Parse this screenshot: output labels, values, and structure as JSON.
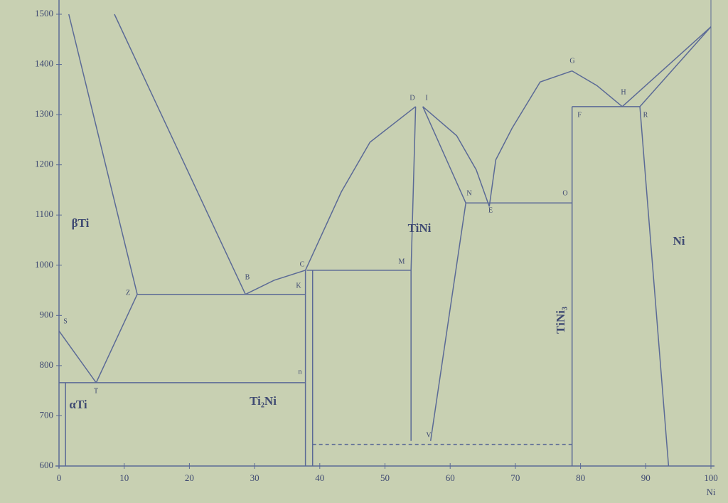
{
  "chart_data": {
    "type": "line",
    "color": "#5b6a96",
    "xlabel": "Ni",
    "xlim": [
      0,
      100
    ],
    "xticks": [
      0,
      10,
      20,
      30,
      40,
      50,
      60,
      70,
      80,
      90,
      100
    ],
    "ylim": [
      600,
      1500
    ],
    "yticks": [
      600,
      700,
      800,
      900,
      1000,
      1100,
      1200,
      1300,
      1400,
      1500
    ],
    "series": [
      {
        "x": [
          1.5,
          12
        ],
        "values": [
          1500,
          942
        ]
      },
      {
        "x": [
          8.5,
          28.6
        ],
        "values": [
          1500,
          942
        ]
      },
      {
        "x": [
          12,
          37.8
        ],
        "values": [
          942,
          942
        ]
      },
      {
        "x": [
          28.6,
          33,
          37.8
        ],
        "values": [
          942,
          970,
          990
        ]
      },
      {
        "x": [
          37.8,
          43.3,
          47.7,
          54.7
        ],
        "values": [
          990,
          1146,
          1245,
          1316
        ]
      },
      {
        "x": [
          55.8,
          61,
          64,
          66
        ],
        "values": [
          1316,
          1258,
          1190,
          1117
        ]
      },
      {
        "x": [
          55.8,
          62.4
        ],
        "values": [
          1316,
          1124
        ]
      },
      {
        "x": [
          66,
          67,
          69.5,
          73.8,
          78.7
        ],
        "values": [
          1117,
          1210,
          1273,
          1365,
          1387
        ]
      },
      {
        "x": [
          78.7,
          82.5,
          86.4
        ],
        "values": [
          1387,
          1358,
          1316
        ]
      },
      {
        "x": [
          86.4,
          100
        ],
        "values": [
          1316,
          1475
        ]
      },
      {
        "x": [
          89.1,
          100
        ],
        "values": [
          1316,
          1475
        ]
      },
      {
        "x": [
          78.7,
          89.1
        ],
        "values": [
          1316,
          1316
        ]
      },
      {
        "x": [
          62.4,
          78.7
        ],
        "values": [
          1124,
          1124
        ]
      },
      {
        "x": [
          38,
          54
        ],
        "values": [
          990,
          990
        ]
      },
      {
        "x": [
          54.7,
          54,
          54
        ],
        "values": [
          1316,
          990,
          650
        ]
      },
      {
        "x": [
          62.4,
          57
        ],
        "values": [
          1124,
          650
        ]
      },
      {
        "x": [
          78.7,
          78.7
        ],
        "values": [
          1316,
          600
        ]
      },
      {
        "x": [
          89.1,
          93.5
        ],
        "values": [
          1316,
          600
        ]
      },
      {
        "x": [
          37.8,
          37.8
        ],
        "values": [
          990,
          600
        ]
      },
      {
        "x": [
          38.9,
          38.9
        ],
        "values": [
          990,
          600
        ]
      },
      {
        "x": [
          0,
          37.8
        ],
        "values": [
          766,
          766
        ]
      },
      {
        "x": [
          0,
          5.7
        ],
        "values": [
          869,
          766
        ]
      },
      {
        "x": [
          5.7,
          12
        ],
        "values": [
          766,
          942
        ]
      },
      {
        "x": [
          38.9,
          78.7
        ],
        "values": [
          643,
          643
        ],
        "style": "dashed"
      },
      {
        "x": [
          1,
          1
        ],
        "values": [
          766,
          600
        ]
      }
    ],
    "regions": [
      "βTi",
      "TiNi",
      "Ti₂Ni",
      "TiNi₃",
      "Ni",
      "αTi"
    ],
    "points": [
      "S",
      "Z",
      "B",
      "C",
      "K",
      "M",
      "D",
      "I",
      "N",
      "E",
      "O",
      "G",
      "H",
      "F",
      "R",
      "V",
      "T",
      "n"
    ]
  }
}
